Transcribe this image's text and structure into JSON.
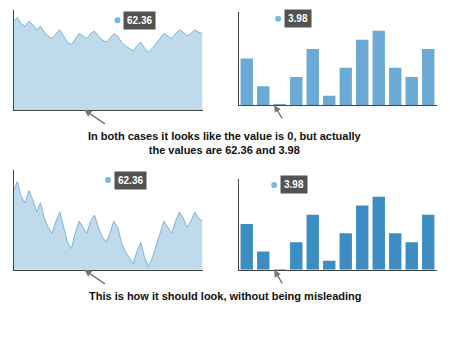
{
  "chart_data": [
    {
      "type": "area",
      "title": "In both cases it looks like the value is 0, but actually\nthe values are 62.36 and 3.98",
      "values": [
        72,
        75,
        70,
        68,
        72,
        69,
        65,
        68,
        63,
        60,
        58,
        62,
        65,
        60,
        55,
        53,
        58,
        62,
        60,
        58,
        62,
        64,
        60,
        57,
        55,
        58,
        62,
        60,
        55,
        52,
        50,
        48,
        52,
        55,
        50,
        47,
        50,
        54,
        58,
        62,
        60,
        58,
        62,
        65,
        63,
        60,
        62,
        65,
        63,
        62
      ],
      "color": "#7eb5d8",
      "xlim": [
        0,
        49
      ],
      "ylim": [
        0,
        81
      ],
      "grid": false,
      "tick_labels": false,
      "annotations": [
        {
          "text": "62.36"
        }
      ]
    },
    {
      "type": "bar",
      "values": [
        2.5,
        1.0,
        0.05,
        1.5,
        3.0,
        0.5,
        2.0,
        3.5,
        3.98,
        2.0,
        1.5,
        3.0
      ],
      "color": "#6aaad4",
      "ylim": [
        0,
        4.975
      ],
      "grid": false,
      "tick_labels": false,
      "annotations": [
        {
          "text": "3.98"
        }
      ]
    },
    {
      "type": "area",
      "title": "This is how it should look, without being misleading",
      "values": [
        72,
        75,
        70,
        68,
        72,
        69,
        65,
        68,
        63,
        60,
        58,
        62,
        65,
        60,
        55,
        53,
        58,
        62,
        60,
        58,
        62,
        64,
        60,
        57,
        55,
        58,
        62,
        60,
        55,
        52,
        50,
        48,
        52,
        55,
        50,
        47,
        50,
        54,
        58,
        62,
        60,
        58,
        62,
        65,
        63,
        60,
        62,
        65,
        63,
        62
      ],
      "color": "#7eb5d8",
      "xlim": [
        0,
        49
      ],
      "ylim": [
        46,
        78.75
      ],
      "grid": false,
      "tick_labels": false,
      "annotations": [
        {
          "text": "62.36"
        }
      ]
    },
    {
      "type": "bar",
      "values": [
        2.5,
        1.0,
        0.05,
        1.5,
        3.0,
        0.5,
        2.0,
        3.5,
        3.98,
        2.0,
        1.5,
        3.0
      ],
      "color": "#3b8dc4",
      "ylim": [
        0,
        4.975
      ],
      "grid": false,
      "tick_labels": false,
      "annotations": [
        {
          "text": "3.98"
        }
      ]
    }
  ]
}
